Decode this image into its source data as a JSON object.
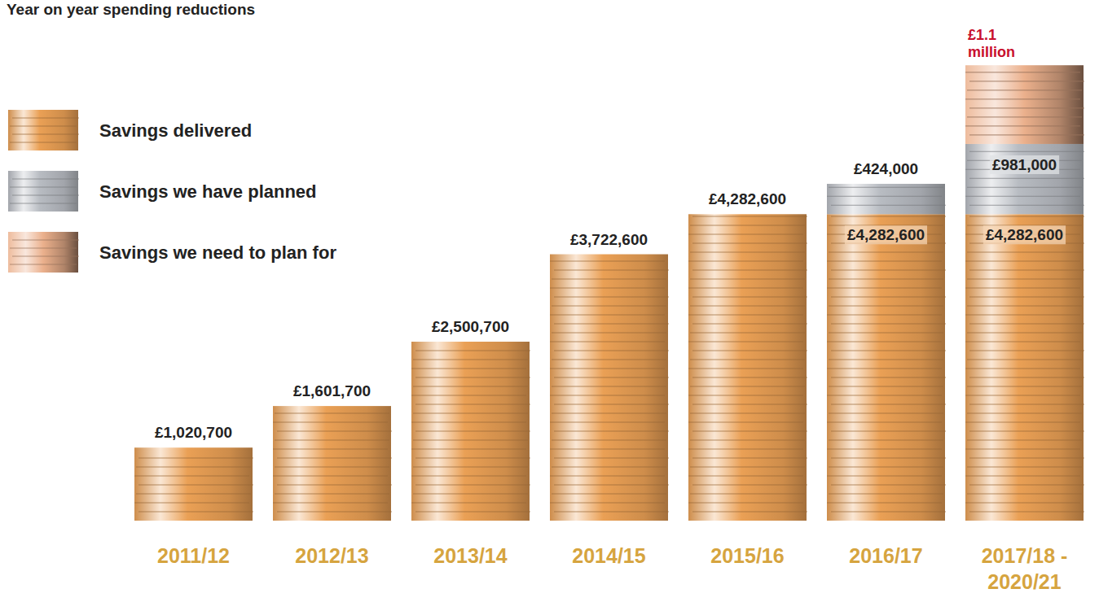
{
  "chart_data": {
    "type": "bar",
    "title": "Year on year spending reductions",
    "stacked": true,
    "data_labels": true,
    "tick_labels": "x",
    "legend": "upper left",
    "categories": [
      "2011/12",
      "2012/13",
      "2013/14",
      "2014/15",
      "2015/16",
      "2016/17",
      "2017/18 - 2020/21"
    ],
    "ylim": [
      0,
      6400000
    ],
    "series": [
      {
        "name": "Savings delivered",
        "color": "#eaa055",
        "values": [
          1020700,
          1601700,
          2500700,
          3722600,
          4282600,
          4282600,
          4282600
        ],
        "value_labels": [
          "£1,020,700",
          "£1,601,700",
          "£2,500,700",
          "£3,722,600",
          "£4,282,600",
          "£4,282,600",
          "£4,282,600"
        ]
      },
      {
        "name": "Savings we have planned",
        "color": "#b8bcc2",
        "values": [
          null,
          null,
          null,
          null,
          null,
          424000,
          981000
        ],
        "value_labels": [
          null,
          null,
          null,
          null,
          null,
          "£424,000",
          "£981,000"
        ]
      },
      {
        "name": "Savings we need to plan for",
        "color": "#ebb08c",
        "values": [
          null,
          null,
          null,
          null,
          null,
          null,
          1100000
        ],
        "value_labels": [
          null,
          null,
          null,
          null,
          null,
          null,
          "£1.1 million"
        ]
      }
    ]
  }
}
